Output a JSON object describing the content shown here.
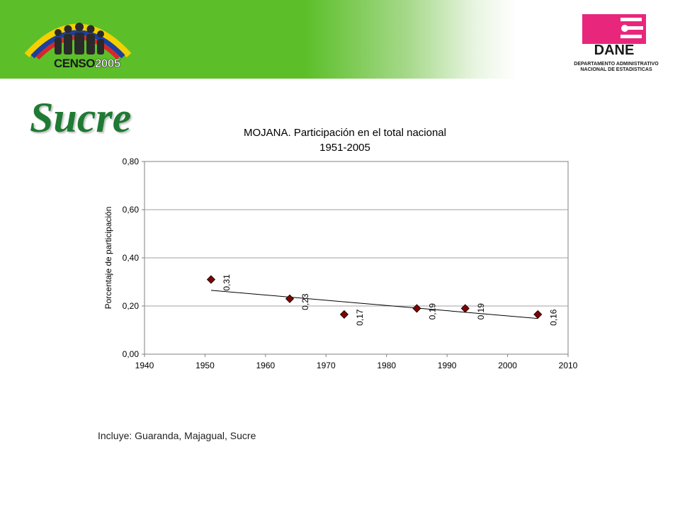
{
  "header": {
    "censo_brand": "CENSO",
    "censo_year": "2005",
    "dane_brand": "DANE",
    "dane_caption_line1": "DEPARTAMENTO ADMINISTRATIVO",
    "dane_caption_line2": "NACIONAL DE ESTADISTICAS",
    "colors": {
      "banner_green": "#5cbf2a",
      "dane_magenta": "#e8267c"
    }
  },
  "region_title": "Sucre",
  "chart_data": {
    "type": "scatter",
    "title": "MOJANA. Participación en el total nacional",
    "subtitle": "1951-2005",
    "xlabel": "",
    "ylabel": "Porcentaje de participación",
    "xlim": [
      1940,
      2010
    ],
    "ylim": [
      0,
      0.8
    ],
    "x_ticks": [
      1940,
      1950,
      1960,
      1970,
      1980,
      1990,
      2000,
      2010
    ],
    "y_ticks": [
      0,
      0.2,
      0.4,
      0.6,
      0.8
    ],
    "y_tick_labels": [
      "0,00",
      "0,20",
      "0,40",
      "0,60",
      "0,80"
    ],
    "grid": "horizontal",
    "series": [
      {
        "x": [
          1951,
          1964,
          1973,
          1985,
          1993,
          2005
        ],
        "values": [
          0.31,
          0.23,
          0.165,
          0.19,
          0.19,
          0.165
        ],
        "labels": [
          "0,31",
          "0,23",
          "0,17",
          "0,19",
          "0,19",
          "0,16"
        ],
        "marker": "diamond",
        "color": "#800000"
      }
    ],
    "trendline": {
      "x": [
        1951,
        2005
      ],
      "y": [
        0.265,
        0.148
      ]
    }
  },
  "note": "Incluye: Guaranda, Majagual, Sucre"
}
